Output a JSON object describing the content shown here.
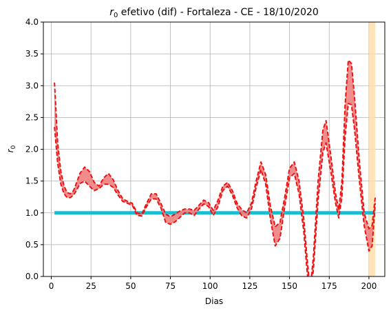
{
  "chart_data": {
    "type": "line",
    "title_main": "r",
    "title_sub": "0",
    "title_rest": " efetivo (dif) - Fortaleza - CE - 18/10/2020",
    "xlabel": "Dias",
    "ylabel_main": "r",
    "ylabel_sub": "0",
    "xlim": [
      -5,
      210
    ],
    "ylim": [
      0,
      4
    ],
    "xticks": [
      0,
      25,
      50,
      75,
      100,
      125,
      150,
      175,
      200
    ],
    "yticks": [
      "0.0",
      "0.5",
      "1.0",
      "1.5",
      "2.0",
      "2.5",
      "3.0",
      "3.5",
      "4.0"
    ],
    "grid": true,
    "reference_line": {
      "y": 1.0,
      "x_start": 2,
      "x_end": 204,
      "color": "#17becf"
    },
    "highlight_span": {
      "x_start": 200,
      "x_end": 204,
      "color": "#ffdead"
    },
    "band_color": "#f08080",
    "line_color": "#ee1111",
    "upper": [
      [
        2,
        3.05
      ],
      [
        4,
        2.1
      ],
      [
        6,
        1.65
      ],
      [
        8,
        1.42
      ],
      [
        10,
        1.32
      ],
      [
        12,
        1.3
      ],
      [
        14,
        1.35
      ],
      [
        16,
        1.48
      ],
      [
        18,
        1.62
      ],
      [
        21,
        1.72
      ],
      [
        24,
        1.65
      ],
      [
        27,
        1.48
      ],
      [
        30,
        1.42
      ],
      [
        33,
        1.55
      ],
      [
        36,
        1.62
      ],
      [
        39,
        1.52
      ],
      [
        42,
        1.35
      ],
      [
        45,
        1.22
      ],
      [
        48,
        1.18
      ],
      [
        51,
        1.15
      ],
      [
        54,
        1.0
      ],
      [
        57,
        0.98
      ],
      [
        60,
        1.15
      ],
      [
        63,
        1.3
      ],
      [
        66,
        1.3
      ],
      [
        69,
        1.15
      ],
      [
        72,
        0.98
      ],
      [
        75,
        0.94
      ],
      [
        78,
        0.98
      ],
      [
        81,
        1.03
      ],
      [
        84,
        1.06
      ],
      [
        87,
        1.06
      ],
      [
        90,
        1.04
      ],
      [
        93,
        1.12
      ],
      [
        96,
        1.2
      ],
      [
        99,
        1.16
      ],
      [
        102,
        1.04
      ],
      [
        105,
        1.2
      ],
      [
        108,
        1.42
      ],
      [
        111,
        1.48
      ],
      [
        114,
        1.35
      ],
      [
        117,
        1.15
      ],
      [
        120,
        1.05
      ],
      [
        123,
        1.0
      ],
      [
        126,
        1.15
      ],
      [
        129,
        1.5
      ],
      [
        132,
        1.8
      ],
      [
        135,
        1.6
      ],
      [
        138,
        1.1
      ],
      [
        141,
        0.78
      ],
      [
        144,
        0.85
      ],
      [
        147,
        1.25
      ],
      [
        150,
        1.7
      ],
      [
        153,
        1.8
      ],
      [
        156,
        1.5
      ],
      [
        159,
        0.9
      ],
      [
        161,
        0.3
      ],
      [
        163,
        -0.2
      ],
      [
        165,
        0.3
      ],
      [
        168,
        1.5
      ],
      [
        171,
        2.3
      ],
      [
        173,
        2.45
      ],
      [
        176,
        1.9
      ],
      [
        179,
        1.3
      ],
      [
        181,
        1.05
      ],
      [
        183,
        1.5
      ],
      [
        185,
        2.7
      ],
      [
        187,
        3.4
      ],
      [
        189,
        3.35
      ],
      [
        191,
        2.8
      ],
      [
        194,
        1.8
      ],
      [
        197,
        1.0
      ],
      [
        200,
        0.75
      ],
      [
        202,
        0.8
      ],
      [
        204,
        1.25
      ]
    ],
    "lower": [
      [
        2,
        2.35
      ],
      [
        4,
        1.78
      ],
      [
        6,
        1.45
      ],
      [
        8,
        1.3
      ],
      [
        10,
        1.24
      ],
      [
        12,
        1.24
      ],
      [
        14,
        1.28
      ],
      [
        16,
        1.36
      ],
      [
        18,
        1.46
      ],
      [
        21,
        1.5
      ],
      [
        24,
        1.42
      ],
      [
        27,
        1.35
      ],
      [
        30,
        1.38
      ],
      [
        33,
        1.45
      ],
      [
        36,
        1.45
      ],
      [
        39,
        1.4
      ],
      [
        42,
        1.28
      ],
      [
        45,
        1.18
      ],
      [
        48,
        1.15
      ],
      [
        51,
        1.12
      ],
      [
        54,
        0.96
      ],
      [
        57,
        0.95
      ],
      [
        60,
        1.1
      ],
      [
        63,
        1.22
      ],
      [
        66,
        1.22
      ],
      [
        69,
        1.08
      ],
      [
        72,
        0.85
      ],
      [
        75,
        0.82
      ],
      [
        78,
        0.86
      ],
      [
        81,
        0.93
      ],
      [
        84,
        1.0
      ],
      [
        87,
        1.0
      ],
      [
        90,
        0.96
      ],
      [
        93,
        1.06
      ],
      [
        96,
        1.14
      ],
      [
        99,
        1.1
      ],
      [
        102,
        0.96
      ],
      [
        105,
        1.1
      ],
      [
        108,
        1.35
      ],
      [
        111,
        1.42
      ],
      [
        114,
        1.28
      ],
      [
        117,
        1.08
      ],
      [
        120,
        0.95
      ],
      [
        123,
        0.92
      ],
      [
        126,
        1.06
      ],
      [
        129,
        1.4
      ],
      [
        132,
        1.68
      ],
      [
        135,
        1.45
      ],
      [
        138,
        0.9
      ],
      [
        141,
        0.48
      ],
      [
        144,
        0.6
      ],
      [
        147,
        1.1
      ],
      [
        150,
        1.55
      ],
      [
        153,
        1.62
      ],
      [
        156,
        1.3
      ],
      [
        159,
        0.7
      ],
      [
        161,
        0.1
      ],
      [
        163,
        -0.4
      ],
      [
        165,
        0.1
      ],
      [
        168,
        1.2
      ],
      [
        171,
        1.95
      ],
      [
        173,
        2.1
      ],
      [
        176,
        1.65
      ],
      [
        179,
        1.15
      ],
      [
        181,
        0.92
      ],
      [
        183,
        1.25
      ],
      [
        185,
        2.2
      ],
      [
        187,
        2.72
      ],
      [
        189,
        2.7
      ],
      [
        191,
        2.3
      ],
      [
        194,
        1.5
      ],
      [
        197,
        0.8
      ],
      [
        200,
        0.4
      ],
      [
        202,
        0.48
      ],
      [
        204,
        1.15
      ]
    ]
  }
}
